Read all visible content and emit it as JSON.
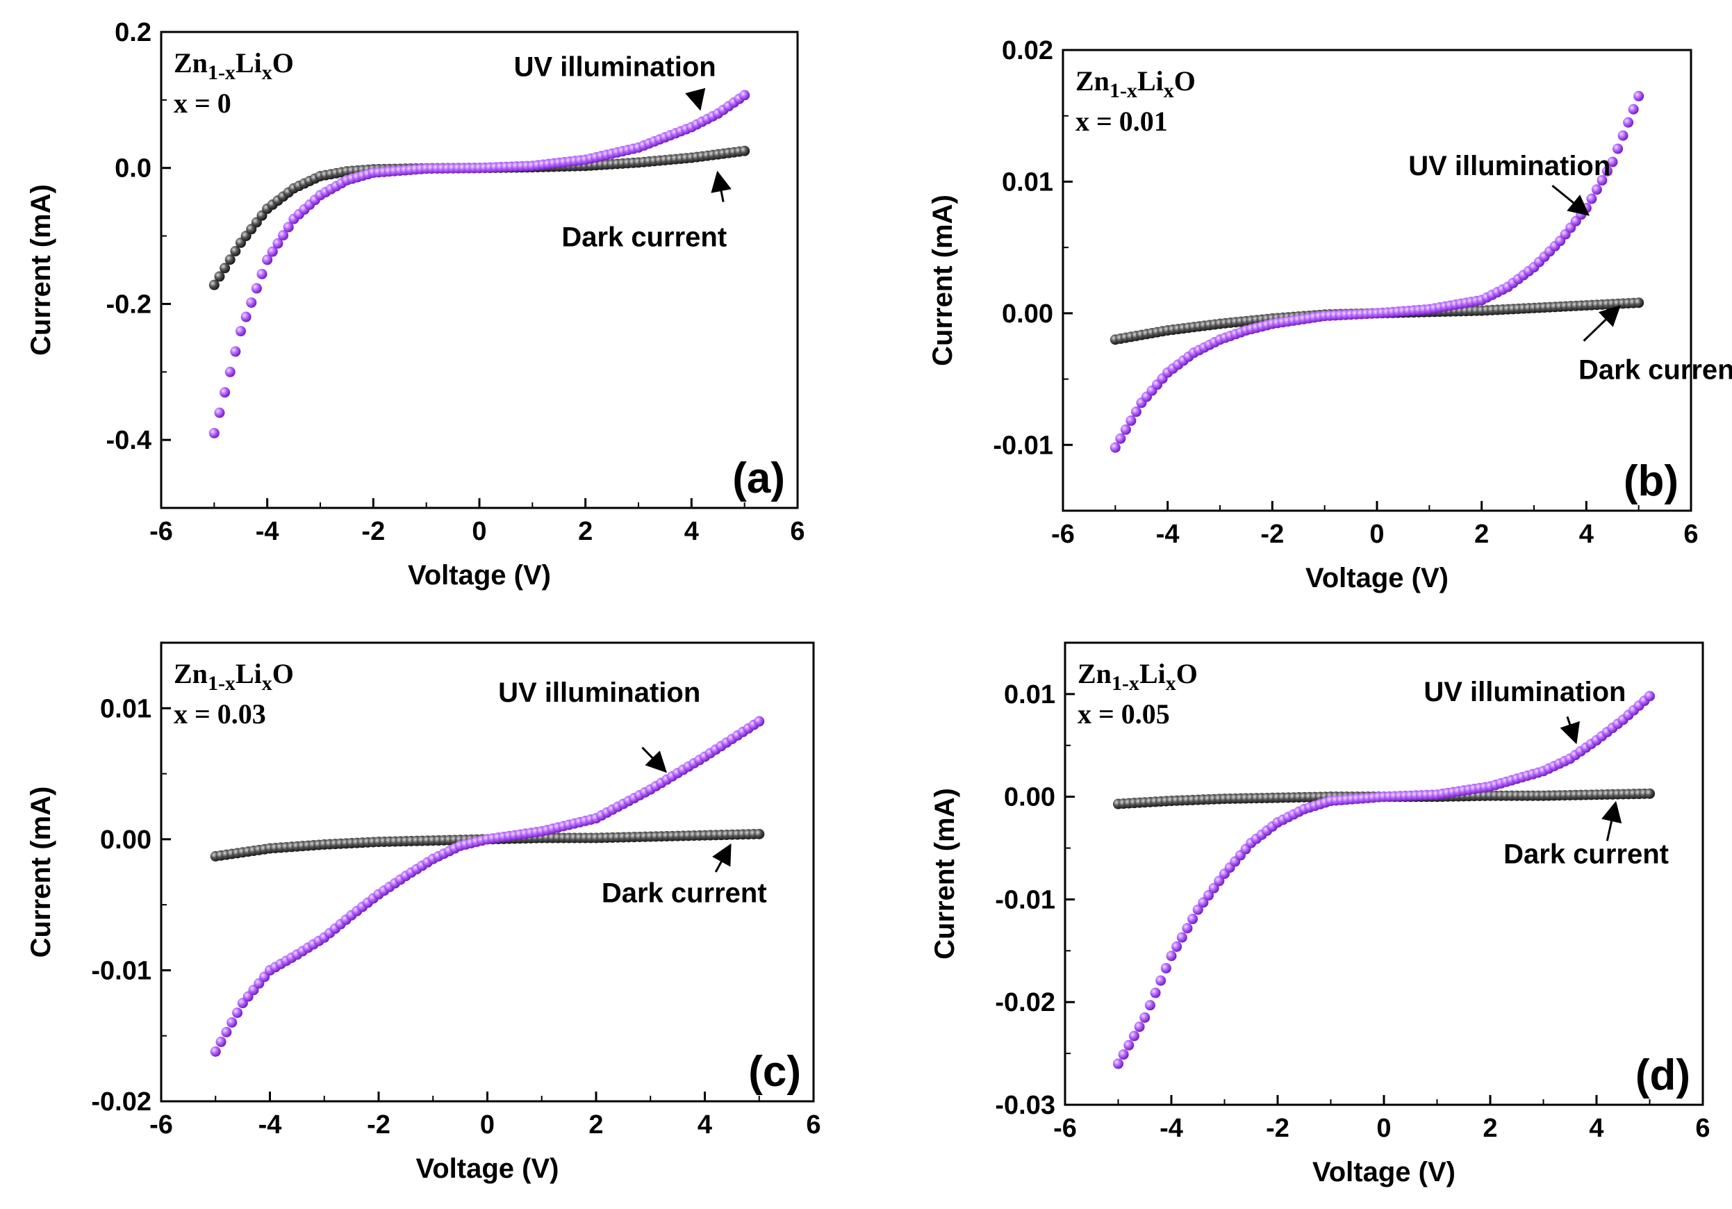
{
  "colors": {
    "uv": "#9b30f0",
    "uv_light": "#e2b8ff",
    "dark": "#222222",
    "dark_light": "#bbbbbb"
  },
  "chart_data": [
    {
      "type": "scatter",
      "panel_label": "(a)",
      "formula": {
        "base": "Zn",
        "sub1": "1-x",
        "mid": "Li",
        "sub2": "x",
        "end": "O"
      },
      "composition": "x = 0",
      "xlabel": "Voltage (V)",
      "ylabel": "Current (mA)",
      "xlim": [
        -6,
        6
      ],
      "ylim": [
        -0.5,
        0.2
      ],
      "xticks": [
        -6,
        -4,
        -2,
        0,
        2,
        4,
        6
      ],
      "xtick_labels": [
        "-6",
        "-4",
        "-2",
        "0",
        "2",
        "4",
        "6"
      ],
      "yticks": [
        -0.4,
        -0.2,
        0.0,
        0.2
      ],
      "ytick_labels": [
        "-0.4",
        "-0.2",
        "0.0",
        "0.2"
      ],
      "series": [
        {
          "name": "UV illumination",
          "x": [
            -5,
            -4.5,
            -4,
            -3.5,
            -3,
            -2.5,
            -2,
            -1,
            0,
            1,
            2,
            3,
            4,
            4.5,
            5
          ],
          "y": [
            -0.39,
            -0.24,
            -0.135,
            -0.075,
            -0.04,
            -0.018,
            -0.007,
            -0.001,
            0,
            0.003,
            0.012,
            0.03,
            0.06,
            0.08,
            0.107
          ]
        },
        {
          "name": "Dark current",
          "x": [
            -5,
            -4.5,
            -4,
            -3.5,
            -3,
            -2.5,
            -2,
            -1,
            0,
            1,
            2,
            3,
            4,
            5
          ],
          "y": [
            -0.172,
            -0.11,
            -0.06,
            -0.03,
            -0.012,
            -0.005,
            -0.002,
            -0.0005,
            0,
            0.001,
            0.003,
            0.008,
            0.015,
            0.025
          ]
        }
      ],
      "annotations": [
        {
          "text": "UV illumination",
          "x": 0.65,
          "y": 0.135
        },
        {
          "text": "Dark current",
          "x": 1.55,
          "y": -0.115
        }
      ],
      "arrows": [
        {
          "from": [
            4.1,
            0.105
          ],
          "to": [
            4.15,
            0.09
          ]
        },
        {
          "from": [
            4.6,
            -0.05
          ],
          "to": [
            4.5,
            -0.01
          ]
        }
      ]
    },
    {
      "type": "scatter",
      "panel_label": "(b)",
      "formula": {
        "base": "Zn",
        "sub1": "1-x",
        "mid": "Li",
        "sub2": "x",
        "end": "O"
      },
      "composition": "x = 0.01",
      "xlabel": "Voltage (V)",
      "ylabel": "Current (mA)",
      "xlim": [
        -6,
        6
      ],
      "ylim": [
        -0.015,
        0.02
      ],
      "xticks": [
        -6,
        -4,
        -2,
        0,
        2,
        4,
        6
      ],
      "xtick_labels": [
        "-6",
        "-4",
        "-2",
        "0",
        "2",
        "4",
        "6"
      ],
      "yticks": [
        -0.01,
        0.0,
        0.01,
        0.02
      ],
      "ytick_labels": [
        "-0.01",
        "0.00",
        "0.01",
        "0.02"
      ],
      "series": [
        {
          "name": "UV illumination",
          "x": [
            -5,
            -4.5,
            -4,
            -3.5,
            -3,
            -2.5,
            -2,
            -1,
            0,
            1,
            2,
            2.5,
            3,
            3.5,
            4,
            4.5,
            5
          ],
          "y": [
            -0.0102,
            -0.0068,
            -0.0045,
            -0.003,
            -0.002,
            -0.0013,
            -0.0008,
            -0.0002,
            0,
            0.0003,
            0.001,
            0.002,
            0.0035,
            0.0055,
            0.008,
            0.0115,
            0.0165
          ]
        },
        {
          "name": "Dark current",
          "x": [
            -5,
            -4,
            -3,
            -2,
            -1,
            0,
            1,
            2,
            3,
            4,
            5
          ],
          "y": [
            -0.002,
            -0.0013,
            -0.0008,
            -0.0004,
            -0.0001,
            0,
            0.0001,
            0.0002,
            0.0004,
            0.0006,
            0.0008
          ]
        }
      ],
      "annotations": [
        {
          "text": "UV illumination",
          "x": 0.6,
          "y": 0.0105
        },
        {
          "text": "Dark current",
          "x": 3.85,
          "y": -0.005
        }
      ],
      "arrows": [
        {
          "from": [
            3.35,
            0.0097
          ],
          "to": [
            4.0,
            0.0076
          ]
        },
        {
          "from": [
            3.95,
            -0.0021
          ],
          "to": [
            4.6,
            0.0004
          ]
        }
      ]
    },
    {
      "type": "scatter",
      "panel_label": "(c)",
      "formula": {
        "base": "Zn",
        "sub1": "1-x",
        "mid": "Li",
        "sub2": "x",
        "end": "O"
      },
      "composition": "x = 0.03",
      "xlabel": "Voltage (V)",
      "ylabel": "Current (mA)",
      "xlim": [
        -6,
        6
      ],
      "ylim": [
        -0.02,
        0.015
      ],
      "xticks": [
        -6,
        -4,
        -2,
        0,
        2,
        4,
        6
      ],
      "xtick_labels": [
        "-6",
        "-4",
        "-2",
        "0",
        "2",
        "4",
        "6"
      ],
      "yticks": [
        -0.02,
        -0.01,
        0.0,
        0.01
      ],
      "ytick_labels": [
        "-0.02",
        "-0.01",
        "0.00",
        "0.01"
      ],
      "series": [
        {
          "name": "UV illumination",
          "x": [
            -5,
            -4.5,
            -4,
            -3.5,
            -3,
            -2.5,
            -2,
            -1.5,
            -1,
            -0.5,
            0,
            1,
            2,
            3,
            4,
            5
          ],
          "y": [
            -0.0162,
            -0.0125,
            -0.01,
            -0.0088,
            -0.0075,
            -0.0058,
            -0.0042,
            -0.0028,
            -0.0015,
            -0.0005,
            0,
            0.0006,
            0.0016,
            0.0038,
            0.0063,
            0.009
          ]
        },
        {
          "name": "Dark current",
          "x": [
            -5,
            -4,
            -3,
            -2,
            -1,
            0,
            1,
            2,
            3,
            4,
            5
          ],
          "y": [
            -0.0013,
            -0.0007,
            -0.0004,
            -0.0002,
            -0.0001,
            0,
            0.0001,
            0.0001,
            0.0002,
            0.0003,
            0.0004
          ]
        }
      ],
      "annotations": [
        {
          "text": "UV illumination",
          "x": 0.2,
          "y": 0.0105
        },
        {
          "text": "Dark current",
          "x": 2.1,
          "y": -0.0048
        }
      ],
      "arrows": [
        {
          "from": [
            2.85,
            0.007
          ],
          "to": [
            3.25,
            0.0053
          ]
        },
        {
          "from": [
            4.2,
            -0.0025
          ],
          "to": [
            4.45,
            -0.0006
          ]
        }
      ]
    },
    {
      "type": "scatter",
      "panel_label": "(d)",
      "formula": {
        "base": "Zn",
        "sub1": "1-x",
        "mid": "Li",
        "sub2": "x",
        "end": "O"
      },
      "composition": "x = 0.05",
      "xlabel": "Voltage (V)",
      "ylabel": "Current (mA)",
      "xlim": [
        -6,
        6
      ],
      "ylim": [
        -0.03,
        0.015
      ],
      "xticks": [
        -6,
        -4,
        -2,
        0,
        2,
        4,
        6
      ],
      "xtick_labels": [
        "-6",
        "-4",
        "-2",
        "0",
        "2",
        "4",
        "6"
      ],
      "yticks": [
        -0.03,
        -0.02,
        -0.01,
        0.0,
        0.01
      ],
      "ytick_labels": [
        "-0.03",
        "-0.02",
        "-0.01",
        "0.00",
        "0.01"
      ],
      "series": [
        {
          "name": "UV illumination",
          "x": [
            -5,
            -4.5,
            -4,
            -3.5,
            -3,
            -2.5,
            -2,
            -1.5,
            -1,
            0,
            1,
            2,
            3,
            3.5,
            4,
            4.5,
            5
          ],
          "y": [
            -0.026,
            -0.0215,
            -0.0155,
            -0.011,
            -0.0075,
            -0.0045,
            -0.0025,
            -0.0012,
            -0.0004,
            0,
            0.0002,
            0.001,
            0.0025,
            0.0037,
            0.0055,
            0.0075,
            0.0098
          ]
        },
        {
          "name": "Dark current",
          "x": [
            -5,
            -4,
            -3,
            -2,
            -1,
            0,
            1,
            2,
            3,
            4,
            5
          ],
          "y": [
            -0.0007,
            -0.0004,
            -0.0002,
            -0.0001,
            0,
            0,
            0,
            0.0001,
            0.0001,
            0.0002,
            0.0003
          ]
        }
      ],
      "annotations": [
        {
          "text": "UV illumination",
          "x": 0.75,
          "y": 0.0093
        },
        {
          "text": "Dark current",
          "x": 2.25,
          "y": -0.0065
        }
      ],
      "arrows": [
        {
          "from": [
            3.45,
            0.0078
          ],
          "to": [
            3.6,
            0.0055
          ]
        },
        {
          "from": [
            4.2,
            -0.0043
          ],
          "to": [
            4.35,
            -0.0008
          ]
        }
      ]
    }
  ]
}
